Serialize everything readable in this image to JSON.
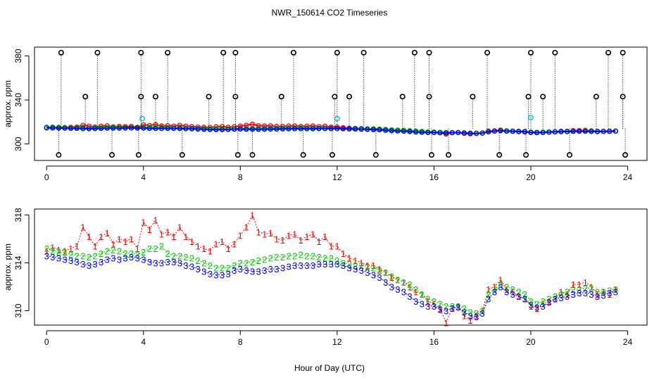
{
  "figure": {
    "title": "NWR_150614  CO2 Timeseries",
    "xlabel": "Hour of Day (UTC)"
  },
  "chart_data": [
    {
      "type": "scatter",
      "panel": "top",
      "title": "NWR_150614  CO2 Timeseries",
      "xlabel": "",
      "ylabel": "approx. ppm",
      "xlim": [
        -0.5,
        24.8
      ],
      "ylim": [
        285,
        388
      ],
      "xticks": [
        0,
        4,
        8,
        12,
        16,
        20,
        24
      ],
      "yticks": [
        300,
        340,
        380
      ],
      "grid": false,
      "colors": {
        "line1": "#ff0000",
        "line2": "#00cc00",
        "line3": "#0000ff",
        "flag": "#000000",
        "cyan": "#00cccc"
      },
      "series": [
        {
          "name": "1",
          "symbol": "1",
          "color": "#ff0000",
          "source": "line1"
        },
        {
          "name": "2",
          "symbol": "2",
          "color": "#00cc00",
          "source": "line2"
        },
        {
          "name": "3",
          "symbol": "3",
          "color": "#0000ff",
          "source": "line3"
        }
      ],
      "flag_high_hours": [
        0.6,
        2.1,
        3.9,
        5.0,
        7.3,
        7.8,
        10.2,
        12.0,
        13.1,
        15.2,
        15.8,
        18.2,
        20.0,
        21.0,
        23.2,
        23.8
      ],
      "flag_mid_hours": [
        1.6,
        3.9,
        4.5,
        6.7,
        7.8,
        9.7,
        11.9,
        12.5,
        14.7,
        15.8,
        17.6,
        19.9,
        20.5,
        22.7,
        23.8
      ],
      "flag_low_hours": [
        0.5,
        2.7,
        3.8,
        5.6,
        7.9,
        8.5,
        10.6,
        11.8,
        13.6,
        15.9,
        16.6,
        18.7,
        19.8,
        21.6,
        23.9
      ],
      "flag_values": {
        "high": 383,
        "mid": 343,
        "low": 290
      },
      "cyan_points": [
        {
          "x": 3.95,
          "y": 323
        },
        {
          "x": 12.0,
          "y": 323
        },
        {
          "x": 20.0,
          "y": 324
        }
      ]
    },
    {
      "type": "scatter",
      "panel": "bottom",
      "xlabel": "Hour of Day (UTC)",
      "ylabel": "approx. ppm",
      "xlim": [
        -0.5,
        24.8
      ],
      "ylim": [
        308.8,
        318.5
      ],
      "xticks": [
        0,
        4,
        8,
        12,
        16,
        20,
        24
      ],
      "yticks": [
        310,
        314,
        318
      ],
      "grid": false,
      "x": [
        0.0,
        0.25,
        0.5,
        0.75,
        1.0,
        1.25,
        1.5,
        1.75,
        2.0,
        2.25,
        2.5,
        2.75,
        3.0,
        3.25,
        3.5,
        3.75,
        4.0,
        4.25,
        4.5,
        4.75,
        5.0,
        5.25,
        5.5,
        5.75,
        6.0,
        6.25,
        6.5,
        6.75,
        7.0,
        7.25,
        7.5,
        7.75,
        8.0,
        8.25,
        8.5,
        8.75,
        9.0,
        9.25,
        9.5,
        9.75,
        10.0,
        10.25,
        10.5,
        10.75,
        11.0,
        11.25,
        11.5,
        11.75,
        12.0,
        12.25,
        12.5,
        12.75,
        13.0,
        13.25,
        13.5,
        13.75,
        14.0,
        14.25,
        14.5,
        14.75,
        15.0,
        15.25,
        15.5,
        15.75,
        16.0,
        16.25,
        16.5,
        16.75,
        17.0,
        17.25,
        17.5,
        17.75,
        18.0,
        18.25,
        18.5,
        18.75,
        19.0,
        19.25,
        19.5,
        19.75,
        20.0,
        20.25,
        20.5,
        20.75,
        21.0,
        21.25,
        21.5,
        21.75,
        22.0,
        22.25,
        22.5,
        22.75,
        23.0,
        23.25,
        23.5
      ],
      "series": [
        {
          "name": "1",
          "symbol": "1",
          "color": "#ff0000",
          "values": [
            315.0,
            315.3,
            315.1,
            315.0,
            315.2,
            315.4,
            317.0,
            316.2,
            315.4,
            316.2,
            316.5,
            315.6,
            316.0,
            315.8,
            316.0,
            315.2,
            317.4,
            316.8,
            317.6,
            316.4,
            316.6,
            316.2,
            317.0,
            316.2,
            315.8,
            315.4,
            315.2,
            315.0,
            315.6,
            315.8,
            315.2,
            315.6,
            316.3,
            317.0,
            318.0,
            316.6,
            316.4,
            316.5,
            316.0,
            315.9,
            316.3,
            316.4,
            315.9,
            316.2,
            316.4,
            315.8,
            316.2,
            315.4,
            315.4,
            314.8,
            314.4,
            314.2,
            314.0,
            313.8,
            313.8,
            313.5,
            313.2,
            312.8,
            312.6,
            312.4,
            312.0,
            311.6,
            311.4,
            310.8,
            310.6,
            310.2,
            309.0,
            310.2,
            310.4,
            309.6,
            309.2,
            309.6,
            310.0,
            311.8,
            312.0,
            312.6,
            311.8,
            311.6,
            311.2,
            311.0,
            310.4,
            310.2,
            310.6,
            310.8,
            311.0,
            311.6,
            311.4,
            312.2,
            312.2,
            312.4,
            312.0,
            311.4,
            311.6,
            311.4,
            311.8
          ]
        },
        {
          "name": "2",
          "symbol": "2",
          "color": "#00cc00",
          "values": [
            315.2,
            315.0,
            314.9,
            314.9,
            314.7,
            314.6,
            314.6,
            314.5,
            314.6,
            314.8,
            315.0,
            315.1,
            315.0,
            314.8,
            314.8,
            314.7,
            314.9,
            315.2,
            315.2,
            315.4,
            314.8,
            314.6,
            314.6,
            314.5,
            314.4,
            314.2,
            314.0,
            313.8,
            313.6,
            313.6,
            313.6,
            313.8,
            314.0,
            314.0,
            314.1,
            314.2,
            314.3,
            314.4,
            314.5,
            314.5,
            314.6,
            314.6,
            314.7,
            314.6,
            314.6,
            314.5,
            314.4,
            314.4,
            314.2,
            314.0,
            313.9,
            313.8,
            313.8,
            313.7,
            313.6,
            313.4,
            313.2,
            312.9,
            312.6,
            312.4,
            312.2,
            311.8,
            311.4,
            311.0,
            310.8,
            310.6,
            310.4,
            310.4,
            310.4,
            310.2,
            309.9,
            309.8,
            310.0,
            311.4,
            311.8,
            312.2,
            312.0,
            311.8,
            311.6,
            311.4,
            310.8,
            310.6,
            310.8,
            311.0,
            311.2,
            311.4,
            311.6,
            311.8,
            311.8,
            311.9,
            311.9,
            311.6,
            311.6,
            311.7,
            311.8
          ]
        },
        {
          "name": "3",
          "symbol": "3",
          "color": "#0000ff",
          "values": [
            314.6,
            314.5,
            314.4,
            314.3,
            314.2,
            314.1,
            313.9,
            313.8,
            313.9,
            314.1,
            314.3,
            314.4,
            314.3,
            314.4,
            314.5,
            314.4,
            314.3,
            314.1,
            314.0,
            314.0,
            314.1,
            314.1,
            314.0,
            313.8,
            313.7,
            313.5,
            313.3,
            313.1,
            313.0,
            313.0,
            313.1,
            313.4,
            313.5,
            313.4,
            313.3,
            313.3,
            313.4,
            313.5,
            313.5,
            313.6,
            313.7,
            313.8,
            313.8,
            313.8,
            313.8,
            313.9,
            313.9,
            313.9,
            313.9,
            313.8,
            313.6,
            313.5,
            313.4,
            313.2,
            313.0,
            312.8,
            312.4,
            312.0,
            311.8,
            311.6,
            311.2,
            310.8,
            310.6,
            310.4,
            310.4,
            310.1,
            310.0,
            310.2,
            310.3,
            309.9,
            309.6,
            309.5,
            309.8,
            311.0,
            311.6,
            312.0,
            311.6,
            311.4,
            311.2,
            311.0,
            310.5,
            310.3,
            310.4,
            310.7,
            311.0,
            311.1,
            311.2,
            311.4,
            311.5,
            311.5,
            311.4,
            311.2,
            311.3,
            311.5,
            311.6
          ]
        }
      ]
    }
  ]
}
